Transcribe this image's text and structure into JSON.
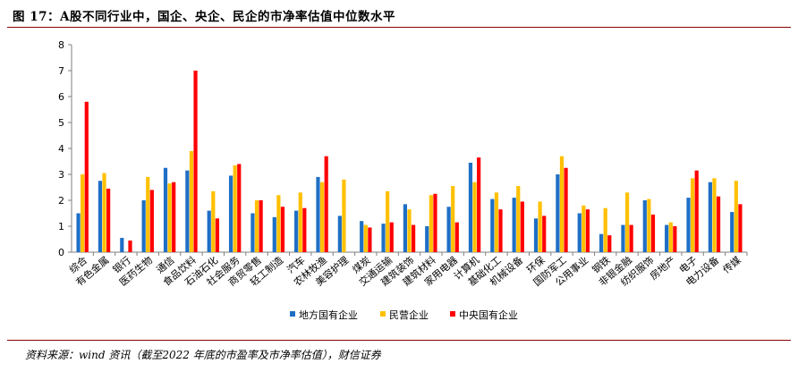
{
  "header": {
    "figure_title": "图 17：A股不同行业中，国企、央企、民企的市净率估值中位数水平"
  },
  "footer": {
    "source": "资料来源：wind 资讯（截至2022 年底的市盈率及市净率估值），财信证券"
  },
  "chart_data": {
    "type": "bar",
    "ylim": [
      0,
      8
    ],
    "yticks": [
      0,
      1,
      2,
      3,
      4,
      5,
      6,
      7,
      8
    ],
    "grid": false,
    "legend_position": "bottom",
    "categories": [
      "综合",
      "有色金属",
      "银行",
      "医药生物",
      "通信",
      "食品饮料",
      "石油石化",
      "社会服务",
      "商贸零售",
      "轻工制造",
      "汽车",
      "农林牧渔",
      "美容护理",
      "煤炭",
      "交通运输",
      "建筑装饰",
      "建筑材料",
      "家用电器",
      "计算机",
      "基础化工",
      "机械设备",
      "环保",
      "国防军工",
      "公用事业",
      "钢铁",
      "非银金融",
      "纺织服饰",
      "房地产",
      "电子",
      "电力设备",
      "传媒"
    ],
    "series": [
      {
        "name": "地方国有企业",
        "color": "#1f6fc5",
        "values": [
          1.5,
          2.75,
          0.55,
          2.0,
          3.25,
          3.15,
          1.6,
          2.95,
          1.5,
          1.35,
          1.6,
          2.9,
          1.4,
          1.2,
          1.1,
          1.85,
          1.0,
          1.75,
          3.45,
          2.05,
          2.1,
          1.3,
          3.0,
          1.5,
          0.7,
          1.05,
          2.0,
          1.05,
          2.1,
          2.7,
          1.55
        ]
      },
      {
        "name": "民营企业",
        "color": "#ffc000",
        "values": [
          3.0,
          3.05,
          null,
          2.9,
          2.65,
          3.9,
          2.35,
          3.35,
          2.0,
          2.2,
          2.3,
          2.7,
          2.8,
          1.05,
          2.35,
          1.65,
          2.2,
          2.55,
          2.7,
          2.3,
          2.55,
          1.95,
          3.7,
          1.8,
          1.7,
          2.3,
          2.05,
          1.15,
          2.85,
          2.85,
          2.75
        ]
      },
      {
        "name": "中央国有企业",
        "color": "#ff0000",
        "values": [
          5.8,
          2.45,
          0.45,
          2.4,
          2.7,
          7.0,
          1.3,
          3.4,
          2.0,
          1.75,
          1.7,
          3.7,
          null,
          0.95,
          1.15,
          1.05,
          2.25,
          1.15,
          3.65,
          1.65,
          1.95,
          1.4,
          3.25,
          1.65,
          0.65,
          1.05,
          1.45,
          1.0,
          3.15,
          2.15,
          1.85
        ]
      }
    ]
  }
}
